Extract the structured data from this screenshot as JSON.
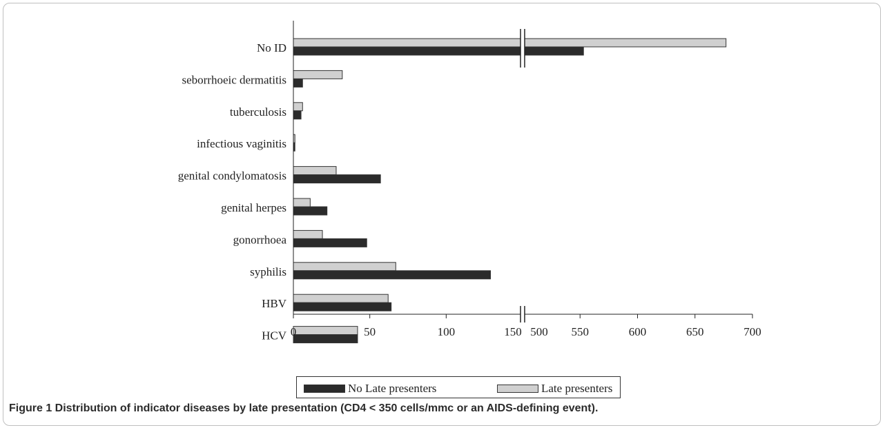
{
  "chart_data": {
    "type": "bar",
    "orientation": "horizontal",
    "axis_break": {
      "from": 150,
      "to": 500
    },
    "categories": [
      "No ID",
      "seborrhoeic dermatitis",
      "tuberculosis",
      "infectious vaginitis",
      "genital condylomatosis",
      "genital herpes",
      "gonorrhoea",
      "syphilis",
      "HBV",
      "HCV"
    ],
    "series": [
      {
        "name": "No Late presenters",
        "color": "#2b2b2b",
        "values": [
          553,
          6,
          5,
          1,
          57,
          22,
          48,
          129,
          64,
          42
        ]
      },
      {
        "name": "Late presenters",
        "color": "#d0d0d0",
        "values": [
          677,
          32,
          6,
          1,
          28,
          11,
          19,
          67,
          62,
          42
        ]
      }
    ],
    "x_ticks": [
      "0",
      "50",
      "100",
      "150",
      "500",
      "550",
      "600",
      "650",
      "700"
    ],
    "xlim": [
      0,
      700
    ],
    "grid": false,
    "legend_position": "bottom"
  },
  "caption": "Figure 1 Distribution of indicator diseases by late presentation (CD4 < 350 cells/mmc or an AIDS-defining event)."
}
